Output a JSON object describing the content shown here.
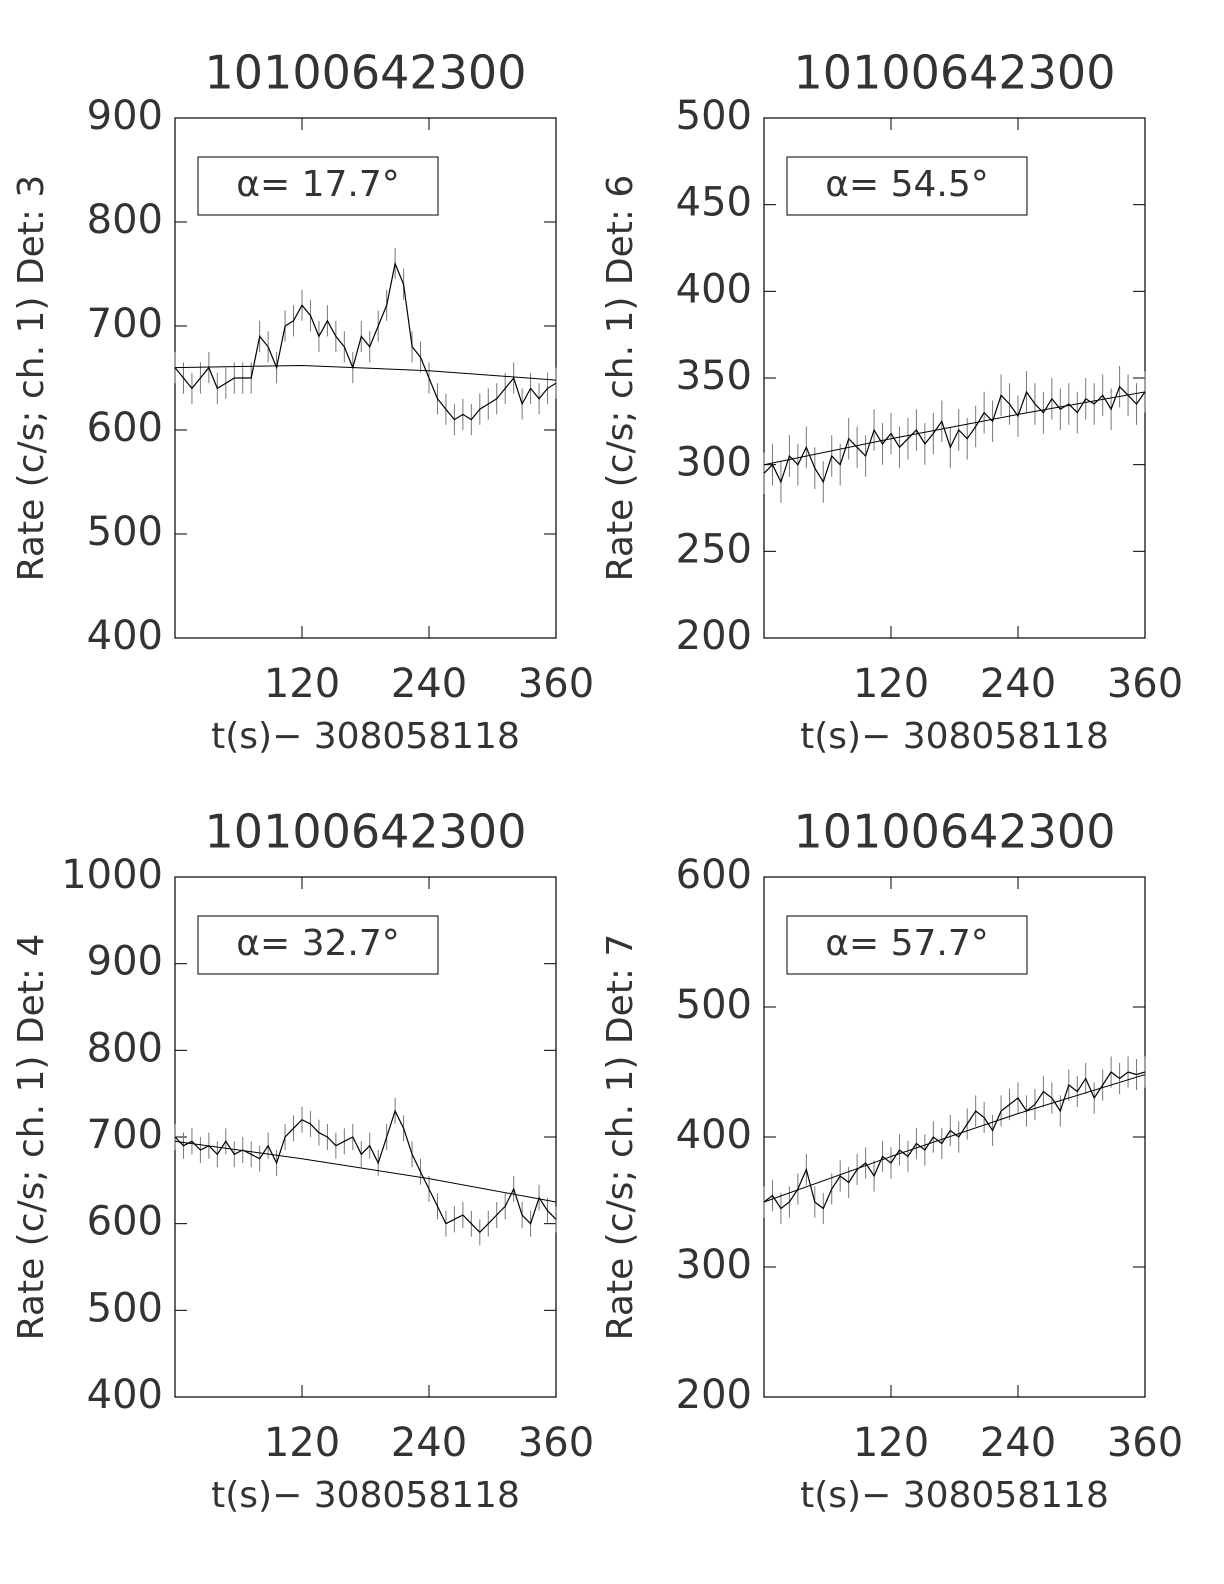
{
  "chart_data": [
    {
      "type": "line",
      "title": "10100642300",
      "ylabel": "Rate (c/s; ch. 1) Det: 3",
      "xlabel": "t(s)− 308058118",
      "annotation": "α= 17.7°",
      "color": "#000000",
      "xlim": [
        0,
        360
      ],
      "xticks": [
        120,
        240,
        360
      ],
      "ylim": [
        400,
        900
      ],
      "yticks": [
        400,
        500,
        600,
        700,
        800,
        900
      ],
      "x": [
        0,
        8,
        16,
        24,
        32,
        40,
        48,
        56,
        64,
        72,
        80,
        88,
        96,
        104,
        112,
        120,
        128,
        136,
        144,
        152,
        160,
        168,
        176,
        184,
        192,
        200,
        208,
        216,
        224,
        232,
        240,
        248,
        256,
        264,
        272,
        280,
        288,
        296,
        304,
        312,
        320,
        328,
        336,
        344,
        352,
        360
      ],
      "values": [
        660,
        650,
        640,
        650,
        660,
        640,
        645,
        650,
        650,
        650,
        690,
        680,
        660,
        700,
        705,
        720,
        710,
        690,
        705,
        690,
        680,
        660,
        690,
        680,
        700,
        720,
        760,
        740,
        680,
        670,
        650,
        630,
        620,
        610,
        615,
        610,
        620,
        625,
        630,
        640,
        650,
        625,
        640,
        630,
        640,
        645
      ],
      "errors": [
        15,
        15,
        15,
        15,
        15,
        15,
        15,
        15,
        15,
        15,
        15,
        15,
        15,
        15,
        15,
        15,
        15,
        15,
        15,
        15,
        15,
        15,
        15,
        15,
        15,
        15,
        15,
        15,
        15,
        15,
        15,
        15,
        15,
        15,
        15,
        15,
        15,
        15,
        15,
        15,
        15,
        15,
        15,
        15,
        15,
        15
      ],
      "fit_x": [
        0,
        120,
        240,
        360
      ],
      "fit_values": [
        660,
        662,
        657,
        648
      ]
    },
    {
      "type": "line",
      "title": "10100642300",
      "ylabel": "Rate (c/s; ch. 1) Det: 6",
      "xlabel": "t(s)− 308058118",
      "annotation": "α= 54.5°",
      "color": "#000000",
      "xlim": [
        0,
        360
      ],
      "xticks": [
        120,
        240,
        360
      ],
      "ylim": [
        200,
        500
      ],
      "yticks": [
        200,
        250,
        300,
        350,
        400,
        450,
        500
      ],
      "x": [
        0,
        8,
        16,
        24,
        32,
        40,
        48,
        56,
        64,
        72,
        80,
        88,
        96,
        104,
        112,
        120,
        128,
        136,
        144,
        152,
        160,
        168,
        176,
        184,
        192,
        200,
        208,
        216,
        224,
        232,
        240,
        248,
        256,
        264,
        272,
        280,
        288,
        296,
        304,
        312,
        320,
        328,
        336,
        344,
        352,
        360
      ],
      "values": [
        295,
        300,
        290,
        305,
        300,
        310,
        298,
        290,
        305,
        300,
        315,
        310,
        305,
        320,
        312,
        318,
        310,
        315,
        320,
        312,
        318,
        325,
        310,
        320,
        315,
        322,
        330,
        325,
        340,
        335,
        328,
        342,
        335,
        330,
        338,
        332,
        335,
        330,
        338,
        335,
        340,
        332,
        345,
        340,
        335,
        342
      ],
      "errors": [
        12,
        12,
        12,
        12,
        12,
        12,
        12,
        12,
        12,
        12,
        12,
        12,
        12,
        12,
        12,
        12,
        12,
        12,
        12,
        12,
        12,
        12,
        12,
        12,
        12,
        12,
        12,
        12,
        12,
        12,
        12,
        12,
        12,
        12,
        12,
        12,
        12,
        12,
        12,
        12,
        12,
        12,
        12,
        12,
        12,
        12
      ],
      "fit_x": [
        0,
        120,
        240,
        360
      ],
      "fit_values": [
        300,
        315,
        329,
        342
      ]
    },
    {
      "type": "line",
      "title": "10100642300",
      "ylabel": "Rate (c/s; ch. 1) Det: 4",
      "xlabel": "t(s)− 308058118",
      "annotation": "α= 32.7°",
      "color": "#000000",
      "xlim": [
        0,
        360
      ],
      "xticks": [
        120,
        240,
        360
      ],
      "ylim": [
        400,
        1000
      ],
      "yticks": [
        400,
        500,
        600,
        700,
        800,
        900,
        1000
      ],
      "x": [
        0,
        8,
        16,
        24,
        32,
        40,
        48,
        56,
        64,
        72,
        80,
        88,
        96,
        104,
        112,
        120,
        128,
        136,
        144,
        152,
        160,
        168,
        176,
        184,
        192,
        200,
        208,
        216,
        224,
        232,
        240,
        248,
        256,
        264,
        272,
        280,
        288,
        296,
        304,
        312,
        320,
        328,
        336,
        344,
        352,
        360
      ],
      "values": [
        700,
        690,
        695,
        685,
        690,
        680,
        695,
        680,
        685,
        680,
        675,
        690,
        670,
        700,
        710,
        720,
        715,
        705,
        700,
        690,
        695,
        700,
        680,
        690,
        670,
        700,
        730,
        710,
        680,
        660,
        640,
        620,
        600,
        605,
        610,
        600,
        590,
        600,
        610,
        620,
        640,
        610,
        600,
        630,
        615,
        605
      ],
      "errors": [
        15,
        15,
        15,
        15,
        15,
        15,
        15,
        15,
        15,
        15,
        15,
        15,
        15,
        15,
        15,
        15,
        15,
        15,
        15,
        15,
        15,
        15,
        15,
        15,
        15,
        15,
        15,
        15,
        15,
        15,
        15,
        15,
        15,
        15,
        15,
        15,
        15,
        15,
        15,
        15,
        15,
        15,
        15,
        15,
        15,
        15
      ],
      "fit_x": [
        0,
        120,
        240,
        360
      ],
      "fit_values": [
        695,
        675,
        652,
        625
      ]
    },
    {
      "type": "line",
      "title": "10100642300",
      "ylabel": "Rate (c/s; ch. 1) Det: 7",
      "xlabel": "t(s)− 308058118",
      "annotation": "α= 57.7°",
      "color": "#000000",
      "xlim": [
        0,
        360
      ],
      "xticks": [
        120,
        240,
        360
      ],
      "ylim": [
        200,
        600
      ],
      "yticks": [
        200,
        300,
        400,
        500,
        600
      ],
      "x": [
        0,
        8,
        16,
        24,
        32,
        40,
        48,
        56,
        64,
        72,
        80,
        88,
        96,
        104,
        112,
        120,
        128,
        136,
        144,
        152,
        160,
        168,
        176,
        184,
        192,
        200,
        208,
        216,
        224,
        232,
        240,
        248,
        256,
        264,
        272,
        280,
        288,
        296,
        304,
        312,
        320,
        328,
        336,
        344,
        352,
        360
      ],
      "values": [
        350,
        355,
        345,
        350,
        360,
        375,
        350,
        345,
        360,
        370,
        365,
        375,
        380,
        370,
        385,
        380,
        390,
        385,
        395,
        390,
        400,
        395,
        405,
        400,
        410,
        420,
        415,
        405,
        420,
        425,
        430,
        420,
        425,
        435,
        430,
        420,
        440,
        435,
        445,
        430,
        440,
        450,
        445,
        450,
        448,
        450
      ],
      "errors": [
        12,
        12,
        12,
        12,
        12,
        12,
        12,
        12,
        12,
        12,
        12,
        12,
        12,
        12,
        12,
        12,
        12,
        12,
        12,
        12,
        12,
        12,
        12,
        12,
        12,
        12,
        12,
        12,
        12,
        12,
        12,
        12,
        12,
        12,
        12,
        12,
        12,
        12,
        12,
        12,
        12,
        12,
        12,
        12,
        12,
        12
      ],
      "fit_x": [
        0,
        120,
        240,
        360
      ],
      "fit_values": [
        350,
        385,
        418,
        448
      ]
    }
  ]
}
